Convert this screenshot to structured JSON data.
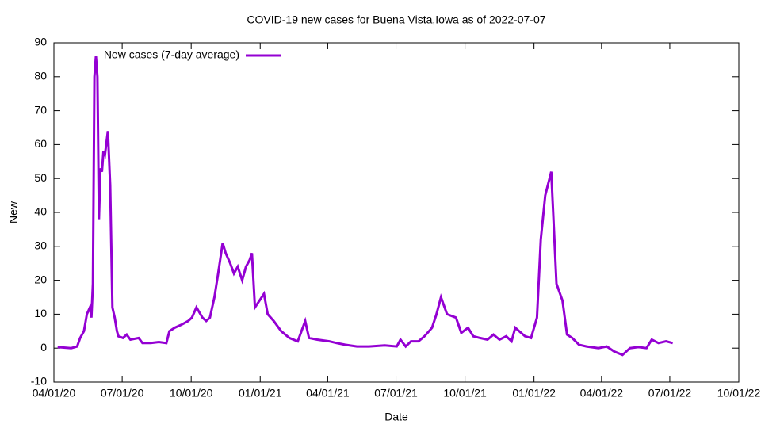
{
  "chart_data": {
    "type": "line",
    "title": "COVID-19 new cases for Buena Vista,Iowa as of 2022-07-07",
    "x_label": "Date",
    "y_label": "New",
    "xlim": [
      "2020-04-01",
      "2022-10-01"
    ],
    "xticks": [
      {
        "value": "2020-04-01",
        "label": "04/01/20"
      },
      {
        "value": "2020-07-01",
        "label": "07/01/20"
      },
      {
        "value": "2020-10-01",
        "label": "10/01/20"
      },
      {
        "value": "2021-01-01",
        "label": "01/01/21"
      },
      {
        "value": "2021-04-01",
        "label": "04/01/21"
      },
      {
        "value": "2021-07-01",
        "label": "07/01/21"
      },
      {
        "value": "2021-10-01",
        "label": "10/01/21"
      },
      {
        "value": "2022-01-01",
        "label": "01/01/22"
      },
      {
        "value": "2022-04-01",
        "label": "04/01/22"
      },
      {
        "value": "2022-07-01",
        "label": "07/01/22"
      },
      {
        "value": "2022-10-01",
        "label": "10/01/22"
      }
    ],
    "ylim": [
      -10,
      90
    ],
    "yticks": [
      -10,
      0,
      10,
      20,
      30,
      40,
      50,
      60,
      70,
      80,
      90
    ],
    "grid": false,
    "legend": "top-left",
    "x": [
      "2020-04-06",
      "2020-04-24",
      "2020-05-02",
      "2020-05-06",
      "2020-05-11",
      "2020-05-15",
      "2020-05-19",
      "2020-05-21",
      "2020-05-23",
      "2020-05-25",
      "2020-05-27",
      "2020-05-29",
      "2020-05-31",
      "2020-06-02",
      "2020-06-04",
      "2020-06-06",
      "2020-06-08",
      "2020-06-12",
      "2020-06-15",
      "2020-06-18",
      "2020-06-21",
      "2020-06-24",
      "2020-06-26",
      "2020-07-02",
      "2020-07-07",
      "2020-07-12",
      "2020-07-23",
      "2020-07-28",
      "2020-08-08",
      "2020-08-19",
      "2020-08-29",
      "2020-09-02",
      "2020-09-09",
      "2020-09-19",
      "2020-09-27",
      "2020-10-02",
      "2020-10-08",
      "2020-10-16",
      "2020-10-21",
      "2020-10-26",
      "2020-11-01",
      "2020-11-06",
      "2020-11-10",
      "2020-11-12",
      "2020-11-16",
      "2020-11-22",
      "2020-11-27",
      "2020-12-02",
      "2020-12-08",
      "2020-12-13",
      "2020-12-18",
      "2020-12-21",
      "2020-12-25",
      "2020-12-31",
      "2021-01-06",
      "2021-01-11",
      "2021-01-19",
      "2021-01-29",
      "2021-02-09",
      "2021-02-20",
      "2021-02-25",
      "2021-03-02",
      "2021-03-07",
      "2021-03-18",
      "2021-04-03",
      "2021-04-13",
      "2021-04-24",
      "2021-05-10",
      "2021-05-26",
      "2021-06-16",
      "2021-07-02",
      "2021-07-07",
      "2021-07-14",
      "2021-07-21",
      "2021-07-31",
      "2021-08-08",
      "2021-08-18",
      "2021-08-24",
      "2021-08-30",
      "2021-09-07",
      "2021-09-19",
      "2021-09-26",
      "2021-10-05",
      "2021-10-12",
      "2021-10-21",
      "2021-10-31",
      "2021-11-08",
      "2021-11-16",
      "2021-11-25",
      "2021-12-02",
      "2021-12-07",
      "2021-12-20",
      "2021-12-28",
      "2022-01-05",
      "2022-01-10",
      "2022-01-16",
      "2022-01-24",
      "2022-01-31",
      "2022-02-08",
      "2022-02-14",
      "2022-02-21",
      "2022-03-02",
      "2022-03-12",
      "2022-03-28",
      "2022-04-08",
      "2022-04-18",
      "2022-04-29",
      "2022-05-09",
      "2022-05-20",
      "2022-05-31",
      "2022-06-07",
      "2022-06-16",
      "2022-06-26",
      "2022-07-05"
    ],
    "series": [
      {
        "name": "New cases (7-day average)",
        "color": "#9400d3",
        "values": [
          0.3,
          0,
          0.5,
          3,
          5,
          10,
          12,
          9,
          19,
          80,
          86,
          80,
          38,
          53,
          52,
          58,
          57,
          64,
          48,
          12,
          9,
          5,
          3.5,
          3,
          4,
          2.5,
          3,
          1.5,
          1.5,
          1.8,
          1.5,
          5,
          6,
          7,
          8,
          9,
          12,
          9,
          8,
          9,
          15,
          22,
          28,
          31,
          28,
          25,
          22,
          24,
          20,
          24,
          26,
          28,
          12,
          14,
          16,
          10,
          8,
          5,
          3,
          2,
          5,
          8,
          3,
          2.5,
          2,
          1.5,
          1,
          0.5,
          0.5,
          0.8,
          0.5,
          2.5,
          0.5,
          2,
          2,
          3.5,
          6,
          10,
          15,
          10,
          9,
          4.5,
          6,
          3.5,
          3,
          2.5,
          4,
          2.5,
          3.5,
          2,
          6,
          3.5,
          3,
          9,
          32,
          45,
          52,
          19,
          14,
          4,
          3,
          1,
          0.5,
          0,
          0.5,
          -1,
          -2,
          0,
          0.3,
          0,
          2.5,
          1.5,
          2,
          1.5
        ]
      }
    ]
  }
}
